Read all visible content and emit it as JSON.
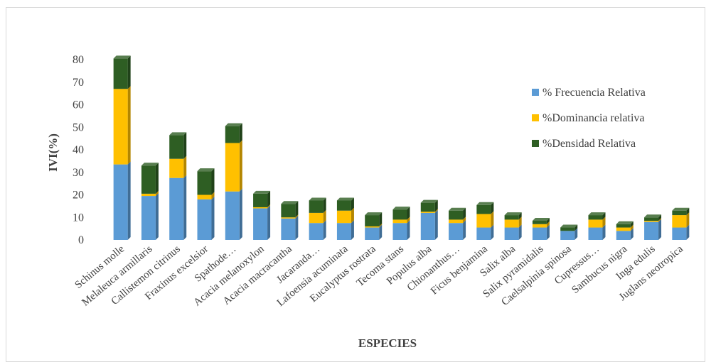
{
  "chart_data": {
    "type": "bar",
    "stacked": true,
    "title": "",
    "xlabel": "ESPECIES",
    "ylabel": "IVI(%)",
    "ylim": [
      0,
      80
    ],
    "yticks": [
      0,
      10,
      20,
      30,
      40,
      50,
      60,
      70,
      80
    ],
    "legend_position": "right",
    "grid": false,
    "categories": [
      "Schinus molle",
      "Melaleuca armillaris",
      "Callistemon citrinus",
      "Fraxinus excelsior",
      "Spathode…",
      "Acacia melanoxylon",
      "Acacia macracantha",
      "Jacaranda…",
      "Lafoensia acuminata",
      "Eucalyptus rostrata",
      "Tecoma stans",
      "Populus alba",
      "Chionanthus…",
      "Ficus benjamina",
      "Salix alba",
      "Salix pyramidalis",
      "Caelsalpinia spinosa",
      "Cupressus…",
      "Sambucus nigra",
      "Inga edulis",
      "Juglans neotropica"
    ],
    "series": [
      {
        "name": "% Frecuencia Relativa",
        "color": "#5B9BD5",
        "values": [
          33.5,
          19.5,
          27.5,
          18,
          21.5,
          14,
          9.5,
          7.5,
          7.5,
          5.5,
          7.5,
          12,
          7.5,
          5.5,
          5.5,
          5.5,
          4.0,
          5.5,
          4.0,
          8.0,
          5.5
        ]
      },
      {
        "name": "%Dominancia relativa",
        "color": "#FFC000",
        "values": [
          33.5,
          1.0,
          8.5,
          2.0,
          21.5,
          0.5,
          0.5,
          4.5,
          5.5,
          0.5,
          1.5,
          0.5,
          1.5,
          6.0,
          3.5,
          1.5,
          0,
          3.5,
          1.5,
          0.5,
          5.5
        ]
      },
      {
        "name": "%Densidad Relativa",
        "color": "#2E5E23",
        "values": [
          13.5,
          12.5,
          10.5,
          10.5,
          7.5,
          6.0,
          6.0,
          5.5,
          4.5,
          5.0,
          4.5,
          4.0,
          4.0,
          4.0,
          2.0,
          1.5,
          1.5,
          2.0,
          1.5,
          1.5,
          2.0
        ]
      }
    ]
  }
}
